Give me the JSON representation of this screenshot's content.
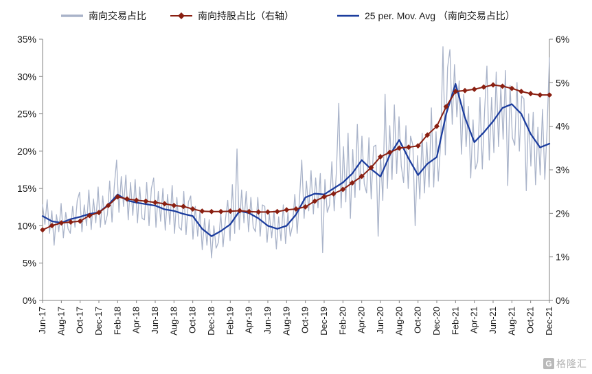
{
  "legend": [
    {
      "label": "南向交易占比",
      "color": "#a9b3c9"
    },
    {
      "label": "南向持股占比（右轴）",
      "color": "#8a1f11"
    },
    {
      "label": "25 per. Mov. Avg （南向交易占比）",
      "color": "#1c3d9e"
    }
  ],
  "watermark": {
    "icon_letter": "G",
    "text": "格隆汇"
  },
  "chart_data": {
    "type": "line",
    "title": "",
    "axis_color": "#808080",
    "text_color": "#1a1a1a",
    "x_tick_step": 2,
    "left_axis": {
      "min": 0,
      "max": 35,
      "step": 5,
      "format": "percent"
    },
    "right_axis": {
      "min": 0,
      "max": 6,
      "step": 1,
      "format": "percent"
    },
    "months": [
      "Jun-17",
      "Jul-17",
      "Aug-17",
      "Sep-17",
      "Oct-17",
      "Nov-17",
      "Dec-17",
      "Jan-18",
      "Feb-18",
      "Mar-18",
      "Apr-18",
      "May-18",
      "Jun-18",
      "Jul-18",
      "Aug-18",
      "Sep-18",
      "Oct-18",
      "Nov-18",
      "Dec-18",
      "Jan-19",
      "Feb-19",
      "Mar-19",
      "Apr-19",
      "May-19",
      "Jun-19",
      "Jul-19",
      "Aug-19",
      "Sep-19",
      "Oct-19",
      "Nov-19",
      "Dec-19",
      "Jan-20",
      "Feb-20",
      "Mar-20",
      "Apr-20",
      "May-20",
      "Jun-20",
      "Jul-20",
      "Aug-20",
      "Sep-20",
      "Oct-20",
      "Nov-20",
      "Dec-20",
      "Jan-21",
      "Feb-21",
      "Mar-21",
      "Apr-21",
      "May-21",
      "Jun-21",
      "Jul-21",
      "Aug-21",
      "Sep-21",
      "Oct-21",
      "Nov-21",
      "Dec-21"
    ],
    "x_tick_labels": [
      "Jun-17",
      "Aug-17",
      "Oct-17",
      "Dec-17",
      "Feb-18",
      "Apr-18",
      "Jun-18",
      "Aug-18",
      "Oct-18",
      "Dec-18",
      "Feb-19",
      "Apr-19",
      "Jun-19",
      "Aug-19",
      "Oct-19",
      "Dec-19",
      "Feb-20",
      "Apr-20",
      "Jun-20",
      "Aug-20",
      "Oct-20",
      "Dec-20",
      "Feb-21",
      "Apr-21",
      "Jun-21",
      "Aug-21",
      "Oct-21",
      "Dec-21"
    ],
    "series": [
      {
        "name": "南向交易占比",
        "axis": "left",
        "color": "#a9b3c9",
        "width": 1.3,
        "unit": "weekly_pct",
        "values": [
          12.8,
          10.2,
          13.5,
          9.0,
          12.0,
          7.4,
          11.5,
          9.2,
          13.0,
          8.4,
          11.8,
          9.6,
          9.0,
          12.6,
          9.8,
          13.4,
          14.5,
          9.2,
          12.8,
          10.0,
          14.8,
          9.5,
          13.6,
          10.4,
          15.2,
          9.8,
          14.0,
          10.2,
          11.5,
          16.0,
          10.5,
          15.4,
          18.8,
          11.8,
          16.6,
          12.6,
          16.8,
          10.8,
          15.8,
          11.4,
          16.2,
          10.4,
          15.2,
          11.0,
          10.8,
          15.8,
          10.0,
          15.0,
          16.4,
          9.8,
          14.6,
          10.6,
          15.0,
          9.4,
          14.2,
          10.2,
          15.4,
          9.0,
          13.8,
          9.8,
          9.4,
          14.6,
          8.8,
          13.2,
          14.0,
          8.2,
          12.6,
          8.6,
          12.0,
          6.8,
          11.0,
          7.4,
          10.8,
          5.7,
          10.0,
          7.0,
          7.8,
          11.6,
          7.2,
          10.8,
          13.4,
          8.0,
          15.5,
          9.0,
          20.3,
          9.5,
          14.8,
          10.4,
          14.6,
          9.2,
          13.8,
          9.8,
          9.2,
          13.8,
          8.6,
          12.8,
          12.6,
          7.8,
          11.6,
          8.4,
          12.0,
          6.9,
          11.2,
          8.0,
          12.8,
          7.6,
          11.8,
          8.6,
          10.0,
          14.2,
          9.0,
          13.6,
          18.8,
          11.0,
          16.0,
          12.0,
          17.4,
          11.6,
          16.4,
          12.4,
          17.0,
          6.4,
          16.2,
          11.8,
          12.8,
          18.6,
          12.0,
          17.6,
          26.4,
          12.4,
          20.6,
          13.2,
          22.4,
          11.0,
          20.2,
          13.8,
          23.6,
          14.8,
          22.0,
          15.6,
          14.4,
          21.8,
          13.6,
          20.6,
          20.8,
          8.6,
          19.6,
          13.4,
          27.6,
          15.0,
          23.4,
          16.2,
          26.2,
          17.0,
          24.6,
          18.0,
          15.8,
          23.4,
          15.0,
          22.0,
          20.8,
          10.0,
          19.4,
          13.6,
          22.4,
          14.4,
          21.2,
          15.2,
          25.8,
          15.2,
          22.6,
          16.0,
          21.0,
          34.0,
          19.5,
          31.2,
          33.6,
          23.6,
          31.6,
          24.6,
          29.4,
          19.6,
          27.6,
          20.6,
          26.0,
          16.4,
          24.2,
          17.6,
          18.6,
          27.2,
          17.6,
          25.4,
          31.4,
          18.8,
          27.2,
          19.8,
          30.6,
          20.6,
          28.6,
          21.6,
          30.8,
          15.4,
          28.8,
          21.8,
          20.8,
          29.2,
          20.0,
          27.4,
          27.0,
          14.7,
          25.0,
          18.0,
          25.2,
          15.5,
          23.2,
          16.8,
          25.6,
          16.2,
          23.0,
          32.5
        ]
      },
      {
        "name": "25 per. Mov. Avg （南向交易占比）",
        "axis": "left",
        "color": "#1c3d9e",
        "width": 2.3,
        "unit": "monthly_pct",
        "values": [
          11.3,
          10.6,
          10.4,
          10.9,
          11.2,
          11.6,
          11.8,
          12.8,
          14.2,
          13.4,
          13.1,
          12.9,
          12.7,
          12.2,
          12.0,
          11.6,
          11.3,
          9.6,
          8.6,
          9.3,
          10.2,
          12.0,
          11.7,
          11.0,
          10.0,
          9.6,
          10.0,
          11.5,
          13.8,
          14.3,
          14.2,
          15.0,
          15.8,
          17.0,
          18.8,
          17.6,
          16.6,
          19.5,
          21.5,
          19.0,
          16.8,
          18.3,
          19.2,
          25.0,
          29.0,
          24.5,
          21.2,
          22.5,
          24.0,
          25.8,
          26.3,
          25.0,
          22.3,
          20.5,
          21.0
        ]
      },
      {
        "name": "南向持股占比（右轴）",
        "axis": "right",
        "color": "#8a1f11",
        "width": 2,
        "marker": "diamond",
        "unit": "monthly_pct",
        "values": [
          1.62,
          1.72,
          1.78,
          1.8,
          1.82,
          1.95,
          2.02,
          2.18,
          2.38,
          2.33,
          2.3,
          2.28,
          2.25,
          2.22,
          2.18,
          2.16,
          2.1,
          2.05,
          2.04,
          2.04,
          2.05,
          2.06,
          2.04,
          2.03,
          2.03,
          2.04,
          2.08,
          2.1,
          2.15,
          2.28,
          2.38,
          2.45,
          2.55,
          2.7,
          2.85,
          3.05,
          3.3,
          3.4,
          3.5,
          3.52,
          3.55,
          3.8,
          4.0,
          4.45,
          4.8,
          4.82,
          4.85,
          4.9,
          4.95,
          4.92,
          4.87,
          4.8,
          4.75,
          4.72,
          4.72
        ]
      }
    ]
  }
}
